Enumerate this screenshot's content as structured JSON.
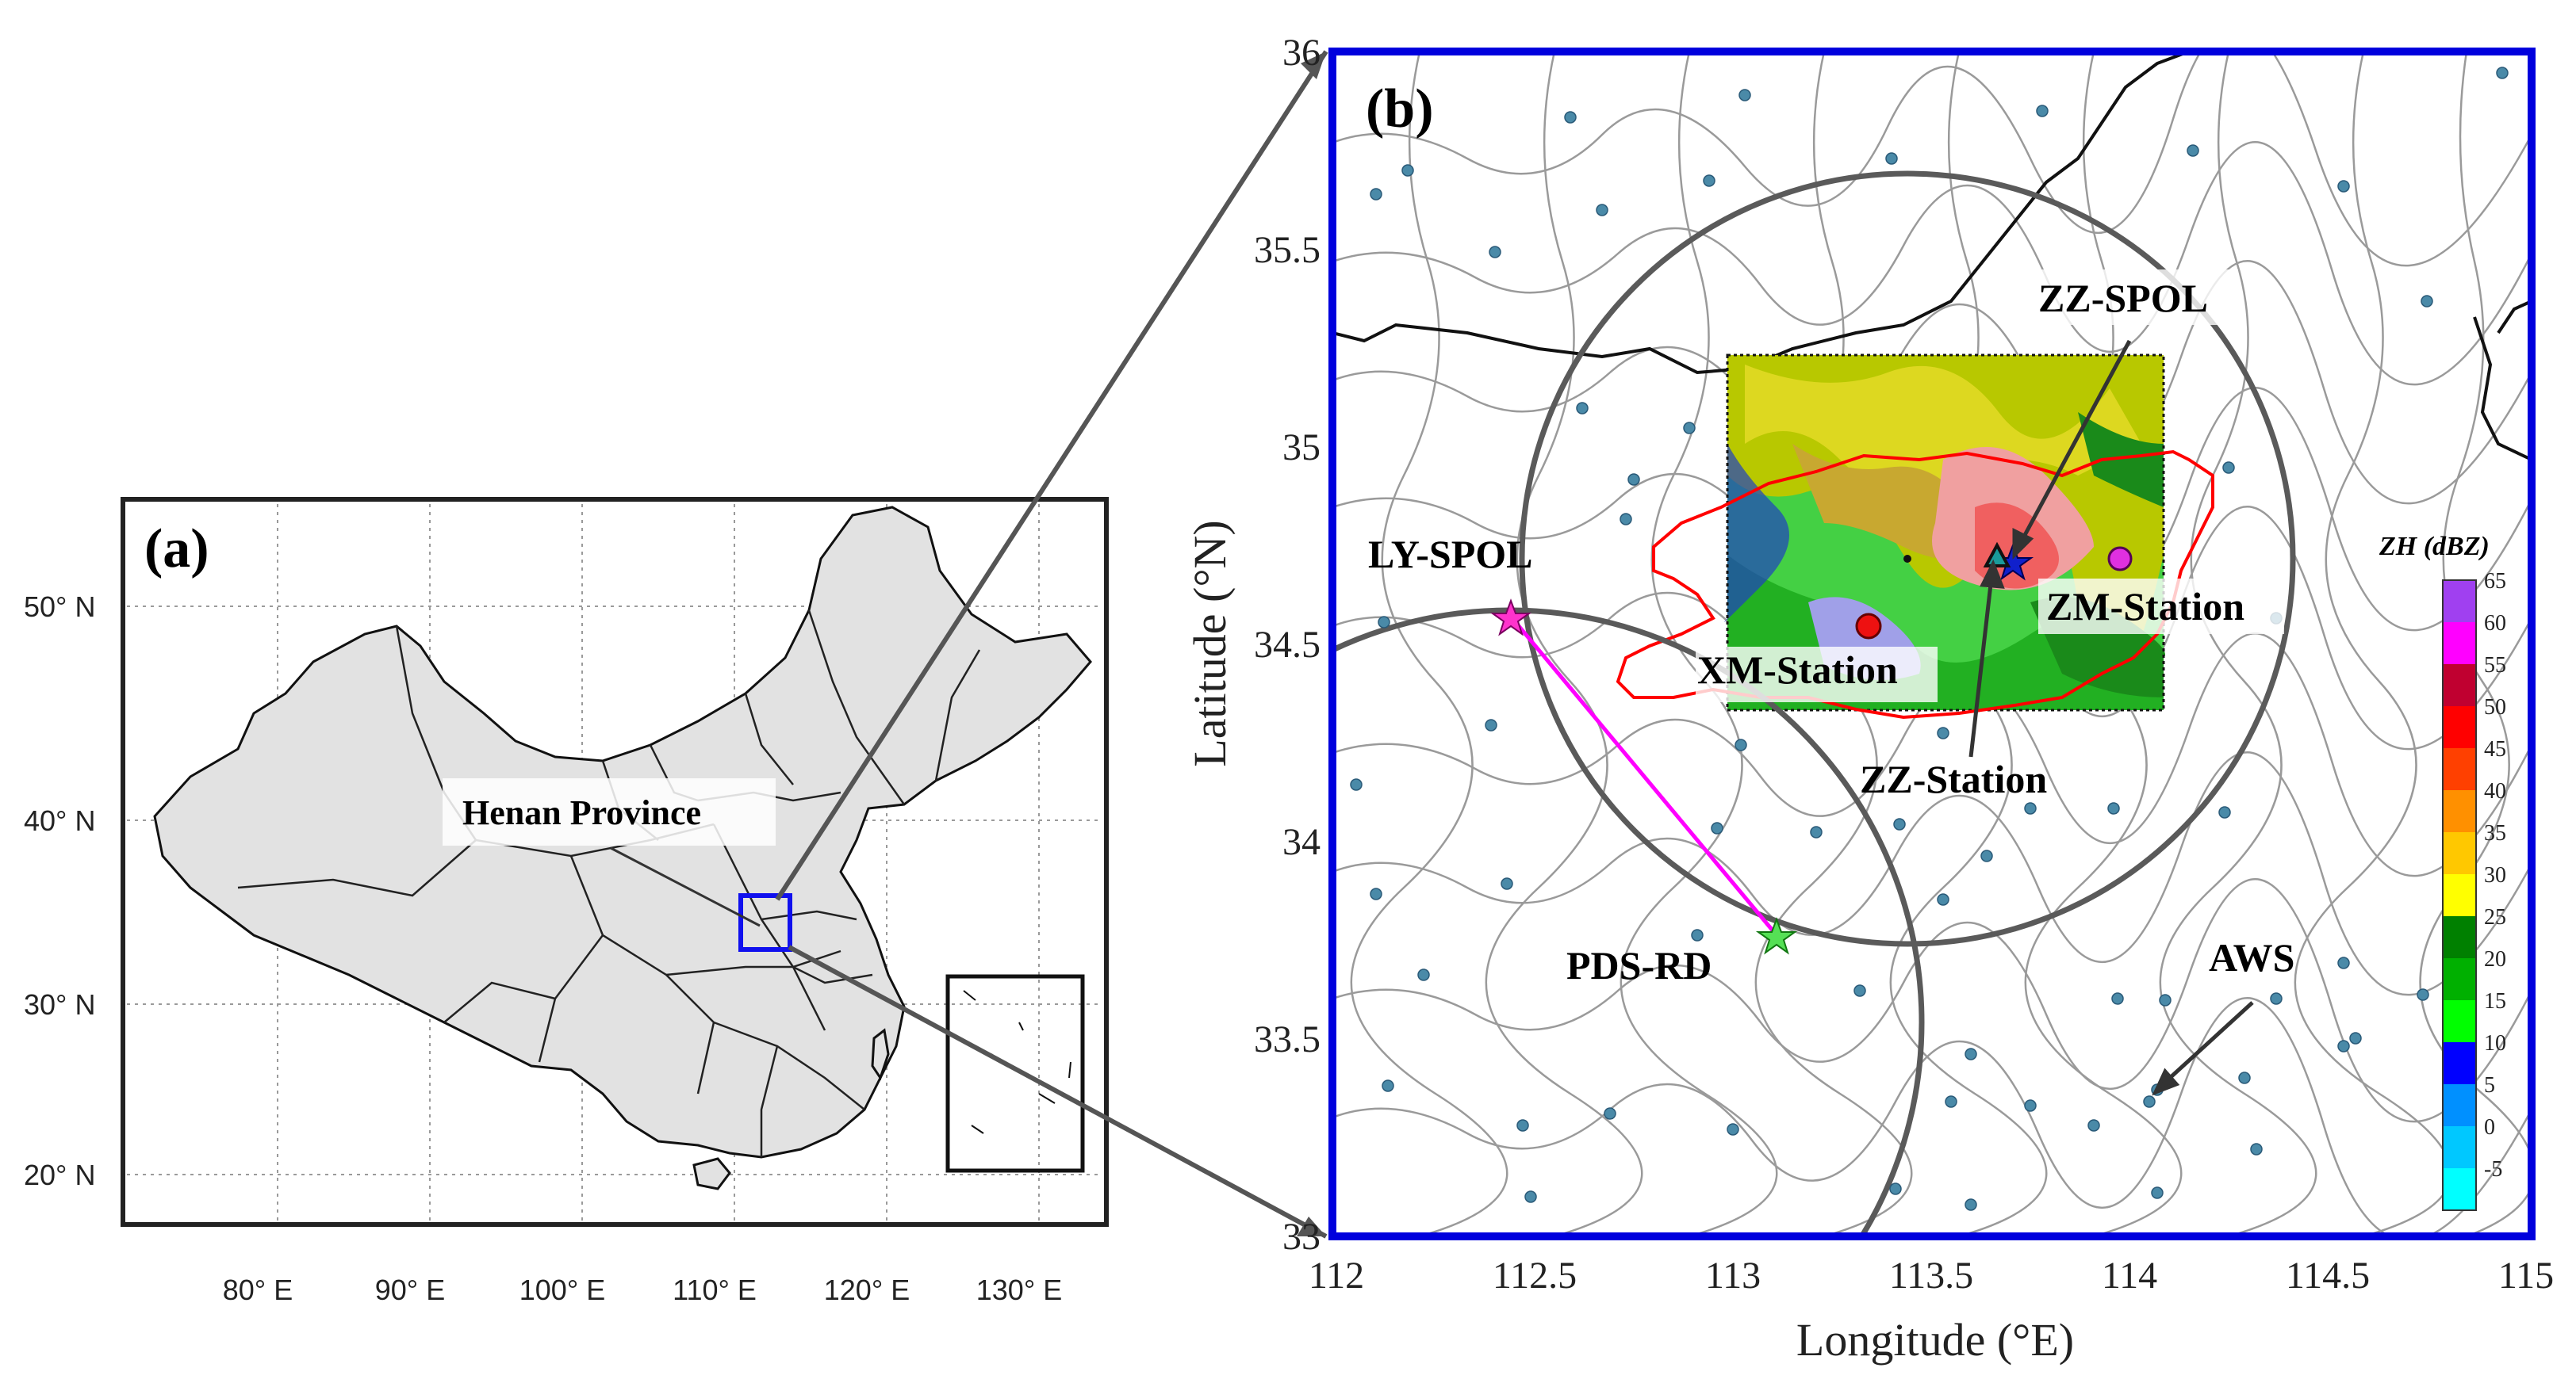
{
  "panel_a": {
    "label": "(a)",
    "province_label": "Henan Province",
    "x_ticks": [
      "80° E",
      "90° E",
      "100° E",
      "110° E",
      "120° E",
      "130° E"
    ],
    "y_ticks": [
      "50° N",
      "40° N",
      "30° N",
      "20° N"
    ]
  },
  "panel_b": {
    "label": "(b)",
    "x_axis_label": "Longitude (°E)",
    "y_axis_label": "Latitude (°N)",
    "x_ticks": [
      "112",
      "112.5",
      "113",
      "113.5",
      "114",
      "114.5",
      "115"
    ],
    "y_ticks": [
      "36",
      "35.5",
      "35",
      "34.5",
      "34",
      "33.5",
      "33"
    ],
    "annotations": {
      "zz_spol": "ZZ-SPOL",
      "ly_spol": "LY-SPOL",
      "zm_station": "ZM-Station",
      "xm_station": "XM-Station",
      "zz_station": "ZZ-Station",
      "pds_rd": "PDS-RD",
      "aws": "AWS"
    },
    "colorbar": {
      "title": "ZH (dBZ)",
      "ticks": [
        "65",
        "60",
        "55",
        "50",
        "45",
        "40",
        "35",
        "30",
        "25",
        "20",
        "15",
        "10",
        "5",
        "0",
        "-5"
      ],
      "colors": [
        "#a040f0",
        "#ff00ff",
        "#c00030",
        "#ff0000",
        "#ff4000",
        "#ff9000",
        "#ffc800",
        "#ffff00",
        "#008000",
        "#00b000",
        "#00ff00",
        "#0000ff",
        "#0090ff",
        "#00c8ff",
        "#00ffff"
      ]
    }
  },
  "colors": {
    "frame_b": "#0000dd",
    "boundary": "#8a8a8a",
    "circle": "#5a5a5a",
    "henan": "#ff0000",
    "baseline": "#ff00ff",
    "aws_dot": "#4a8aa8"
  }
}
